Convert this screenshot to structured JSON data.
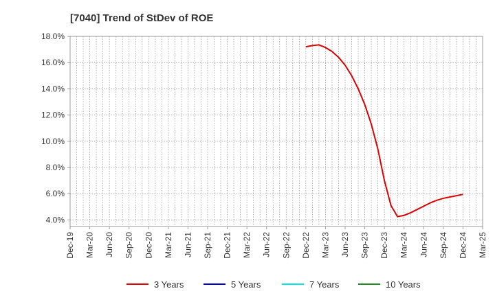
{
  "chart_data": {
    "type": "line",
    "title": "[7040]  Trend of StDev of ROE",
    "xlabel": "",
    "ylabel": "",
    "ylim": [
      3.5,
      18.0
    ],
    "y_ticks": [
      "4.0%",
      "6.0%",
      "8.0%",
      "10.0%",
      "12.0%",
      "14.0%",
      "16.0%",
      "18.0%"
    ],
    "y_tick_values": [
      4,
      6,
      8,
      10,
      12,
      14,
      16,
      18
    ],
    "x_ticks": [
      "Dec-19",
      "Mar-20",
      "Jun-20",
      "Sep-20",
      "Dec-20",
      "Mar-21",
      "Jun-21",
      "Sep-21",
      "Dec-21",
      "Mar-22",
      "Jun-22",
      "Sep-22",
      "Dec-22",
      "Mar-23",
      "Jun-23",
      "Sep-23",
      "Dec-23",
      "Mar-24",
      "Jun-24",
      "Sep-24",
      "Dec-24",
      "Mar-25"
    ],
    "grid": true,
    "legend_position": "bottom",
    "series": [
      {
        "name": "3 Years",
        "color": "#dd0000",
        "points": [
          [
            "Dec-22",
            17.2
          ],
          [
            "Jan-23",
            17.3
          ],
          [
            "Feb-23",
            17.35
          ],
          [
            "Mar-23",
            17.15
          ],
          [
            "Apr-23",
            16.85
          ],
          [
            "May-23",
            16.4
          ],
          [
            "Jun-23",
            15.8
          ],
          [
            "Jul-23",
            15.0
          ],
          [
            "Aug-23",
            14.0
          ],
          [
            "Sep-23",
            12.8
          ],
          [
            "Oct-23",
            11.3
          ],
          [
            "Nov-23",
            9.4
          ],
          [
            "Dec-23",
            7.0
          ],
          [
            "Jan-24",
            5.1
          ],
          [
            "Feb-24",
            4.25
          ],
          [
            "Mar-24",
            4.35
          ],
          [
            "Apr-24",
            4.55
          ],
          [
            "May-24",
            4.8
          ],
          [
            "Jun-24",
            5.05
          ],
          [
            "Jul-24",
            5.3
          ],
          [
            "Aug-24",
            5.5
          ],
          [
            "Sep-24",
            5.65
          ],
          [
            "Oct-24",
            5.75
          ],
          [
            "Nov-24",
            5.85
          ],
          [
            "Dec-24",
            5.95
          ]
        ]
      },
      {
        "name": "5 Years",
        "color": "#0000cc",
        "points": []
      },
      {
        "name": "7 Years",
        "color": "#00e5e5",
        "points": []
      },
      {
        "name": "10 Years",
        "color": "#228b22",
        "points": []
      }
    ]
  }
}
